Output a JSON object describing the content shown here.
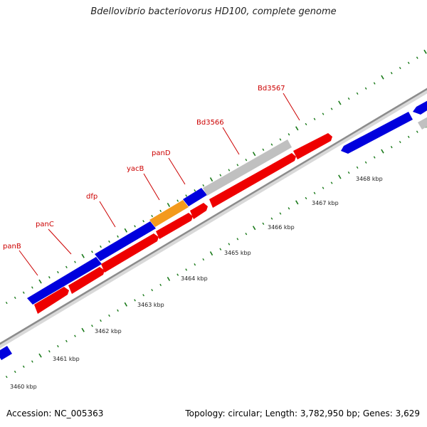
{
  "title": "Bdellovibrio bacteriovorus HD100, complete genome",
  "footer": {
    "accession": "Accession: NC_005363",
    "topology": "Topology: circular; Length: 3,782,950 bp; Genes: 3,629"
  },
  "colors": {
    "forward_gene": "#0000dd",
    "reverse_gene": "#ee0000",
    "hypothetical_gene": "#c0c0c0",
    "highlight_gene": "#f39a1c",
    "tick_mark": "#1a7a1a",
    "backbone": "#8c8c8c",
    "label": "#cc0000"
  },
  "gene_labels": [
    {
      "name": "panB"
    },
    {
      "name": "panC"
    },
    {
      "name": "dfp"
    },
    {
      "name": "yacB"
    },
    {
      "name": "panD"
    },
    {
      "name": "Bd3566"
    },
    {
      "name": "Bd3567"
    }
  ],
  "scale_labels": [
    {
      "text": "3460 kbp"
    },
    {
      "text": "3461 kbp"
    },
    {
      "text": "3462 kbp"
    },
    {
      "text": "3463 kbp"
    },
    {
      "text": "3464 kbp"
    },
    {
      "text": "3465 kbp"
    },
    {
      "text": "3466 kbp"
    },
    {
      "text": "3467 kbp"
    },
    {
      "text": "3468 kbp"
    }
  ]
}
